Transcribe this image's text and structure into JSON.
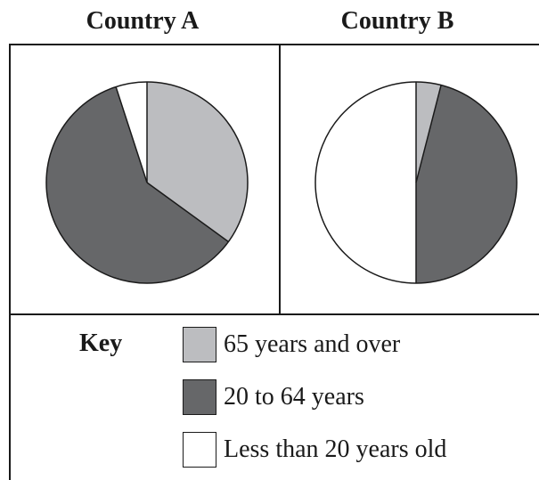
{
  "colors": {
    "light_gray": "#bcbdc0",
    "dark_gray": "#666769",
    "white": "#ffffff",
    "outline": "#1a1a1a"
  },
  "key": {
    "title": "Key",
    "items": [
      {
        "label": "65 years and over",
        "color": "#bcbdc0"
      },
      {
        "label": "20 to 64 years",
        "color": "#666769"
      },
      {
        "label": "Less than 20 years old",
        "color": "#ffffff"
      }
    ]
  },
  "chart_data": [
    {
      "type": "pie",
      "title": "Country A",
      "slices": [
        {
          "label": "65 years and over",
          "value": 35,
          "color": "#bcbdc0"
        },
        {
          "label": "20 to 64 years",
          "value": 60,
          "color": "#666769"
        },
        {
          "label": "Less than 20 years old",
          "value": 5,
          "color": "#ffffff"
        }
      ]
    },
    {
      "type": "pie",
      "title": "Country B",
      "slices": [
        {
          "label": "65 years and over",
          "value": 4,
          "color": "#bcbdc0"
        },
        {
          "label": "20 to 64 years",
          "value": 46,
          "color": "#666769"
        },
        {
          "label": "Less than 20 years old",
          "value": 50,
          "color": "#ffffff"
        }
      ]
    }
  ]
}
